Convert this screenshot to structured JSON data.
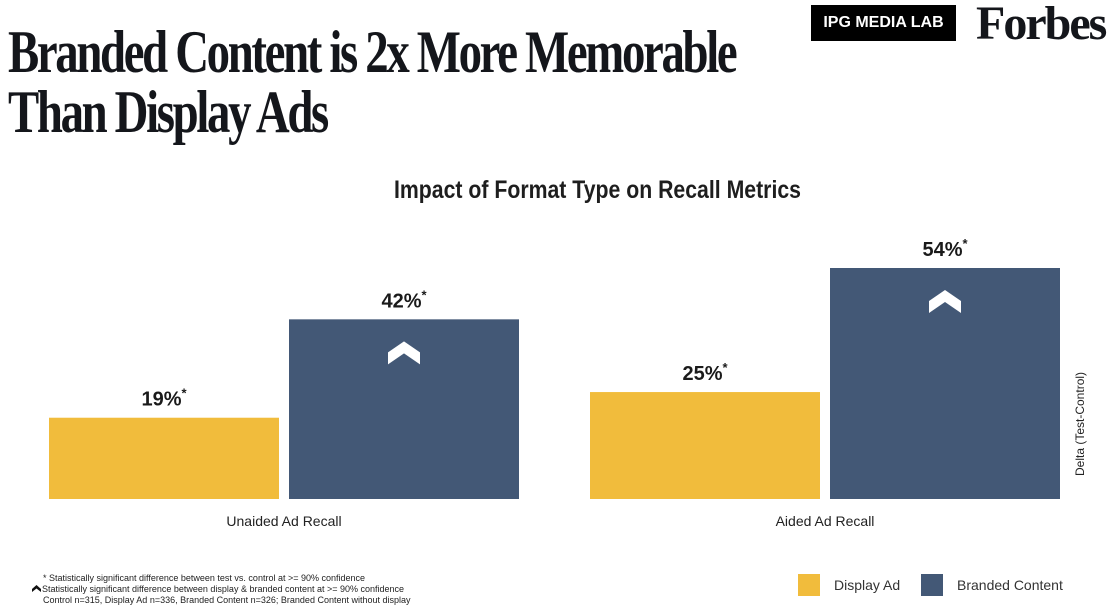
{
  "header": {
    "headline_line1": "Branded Content is 2x More Memorable",
    "headline_line2": "Than Display Ads",
    "logo_ipg": "IPG MEDIA LAB",
    "logo_forbes": "Forbes"
  },
  "colors": {
    "display_ad": "#F1BC3C",
    "branded_content": "#435876",
    "text": "#1a1a1a"
  },
  "chart_data": {
    "type": "bar",
    "title": "Impact of Format Type on Recall Metrics",
    "xlabel": "",
    "ylabel": "Delta (Test-Control)",
    "categories": [
      "Unaided Ad Recall",
      "Aided Ad Recall"
    ],
    "series": [
      {
        "name": "Display Ad",
        "values": [
          19,
          25
        ],
        "labels": [
          "19%*",
          "25%*"
        ],
        "significant_vs_display": [
          false,
          false
        ]
      },
      {
        "name": "Branded Content",
        "values": [
          42,
          54
        ],
        "labels": [
          "42%*",
          "54%*"
        ],
        "significant_vs_display": [
          true,
          true
        ]
      }
    ],
    "ylim": [
      0,
      54
    ],
    "grid": false,
    "legend_position": "bottom-right",
    "unit": "%"
  },
  "footnotes": [
    "* Statistically significant difference between test vs. control at >= 90% confidence",
    "Statistically significant difference between display & branded content at >= 90% confidence",
    "Control n=315, Display Ad n=336, Branded Content n=326; Branded Content without display"
  ],
  "legend": [
    {
      "label": "Display Ad",
      "color": "#F1BC3C"
    },
    {
      "label": "Branded Content",
      "color": "#435876"
    }
  ]
}
